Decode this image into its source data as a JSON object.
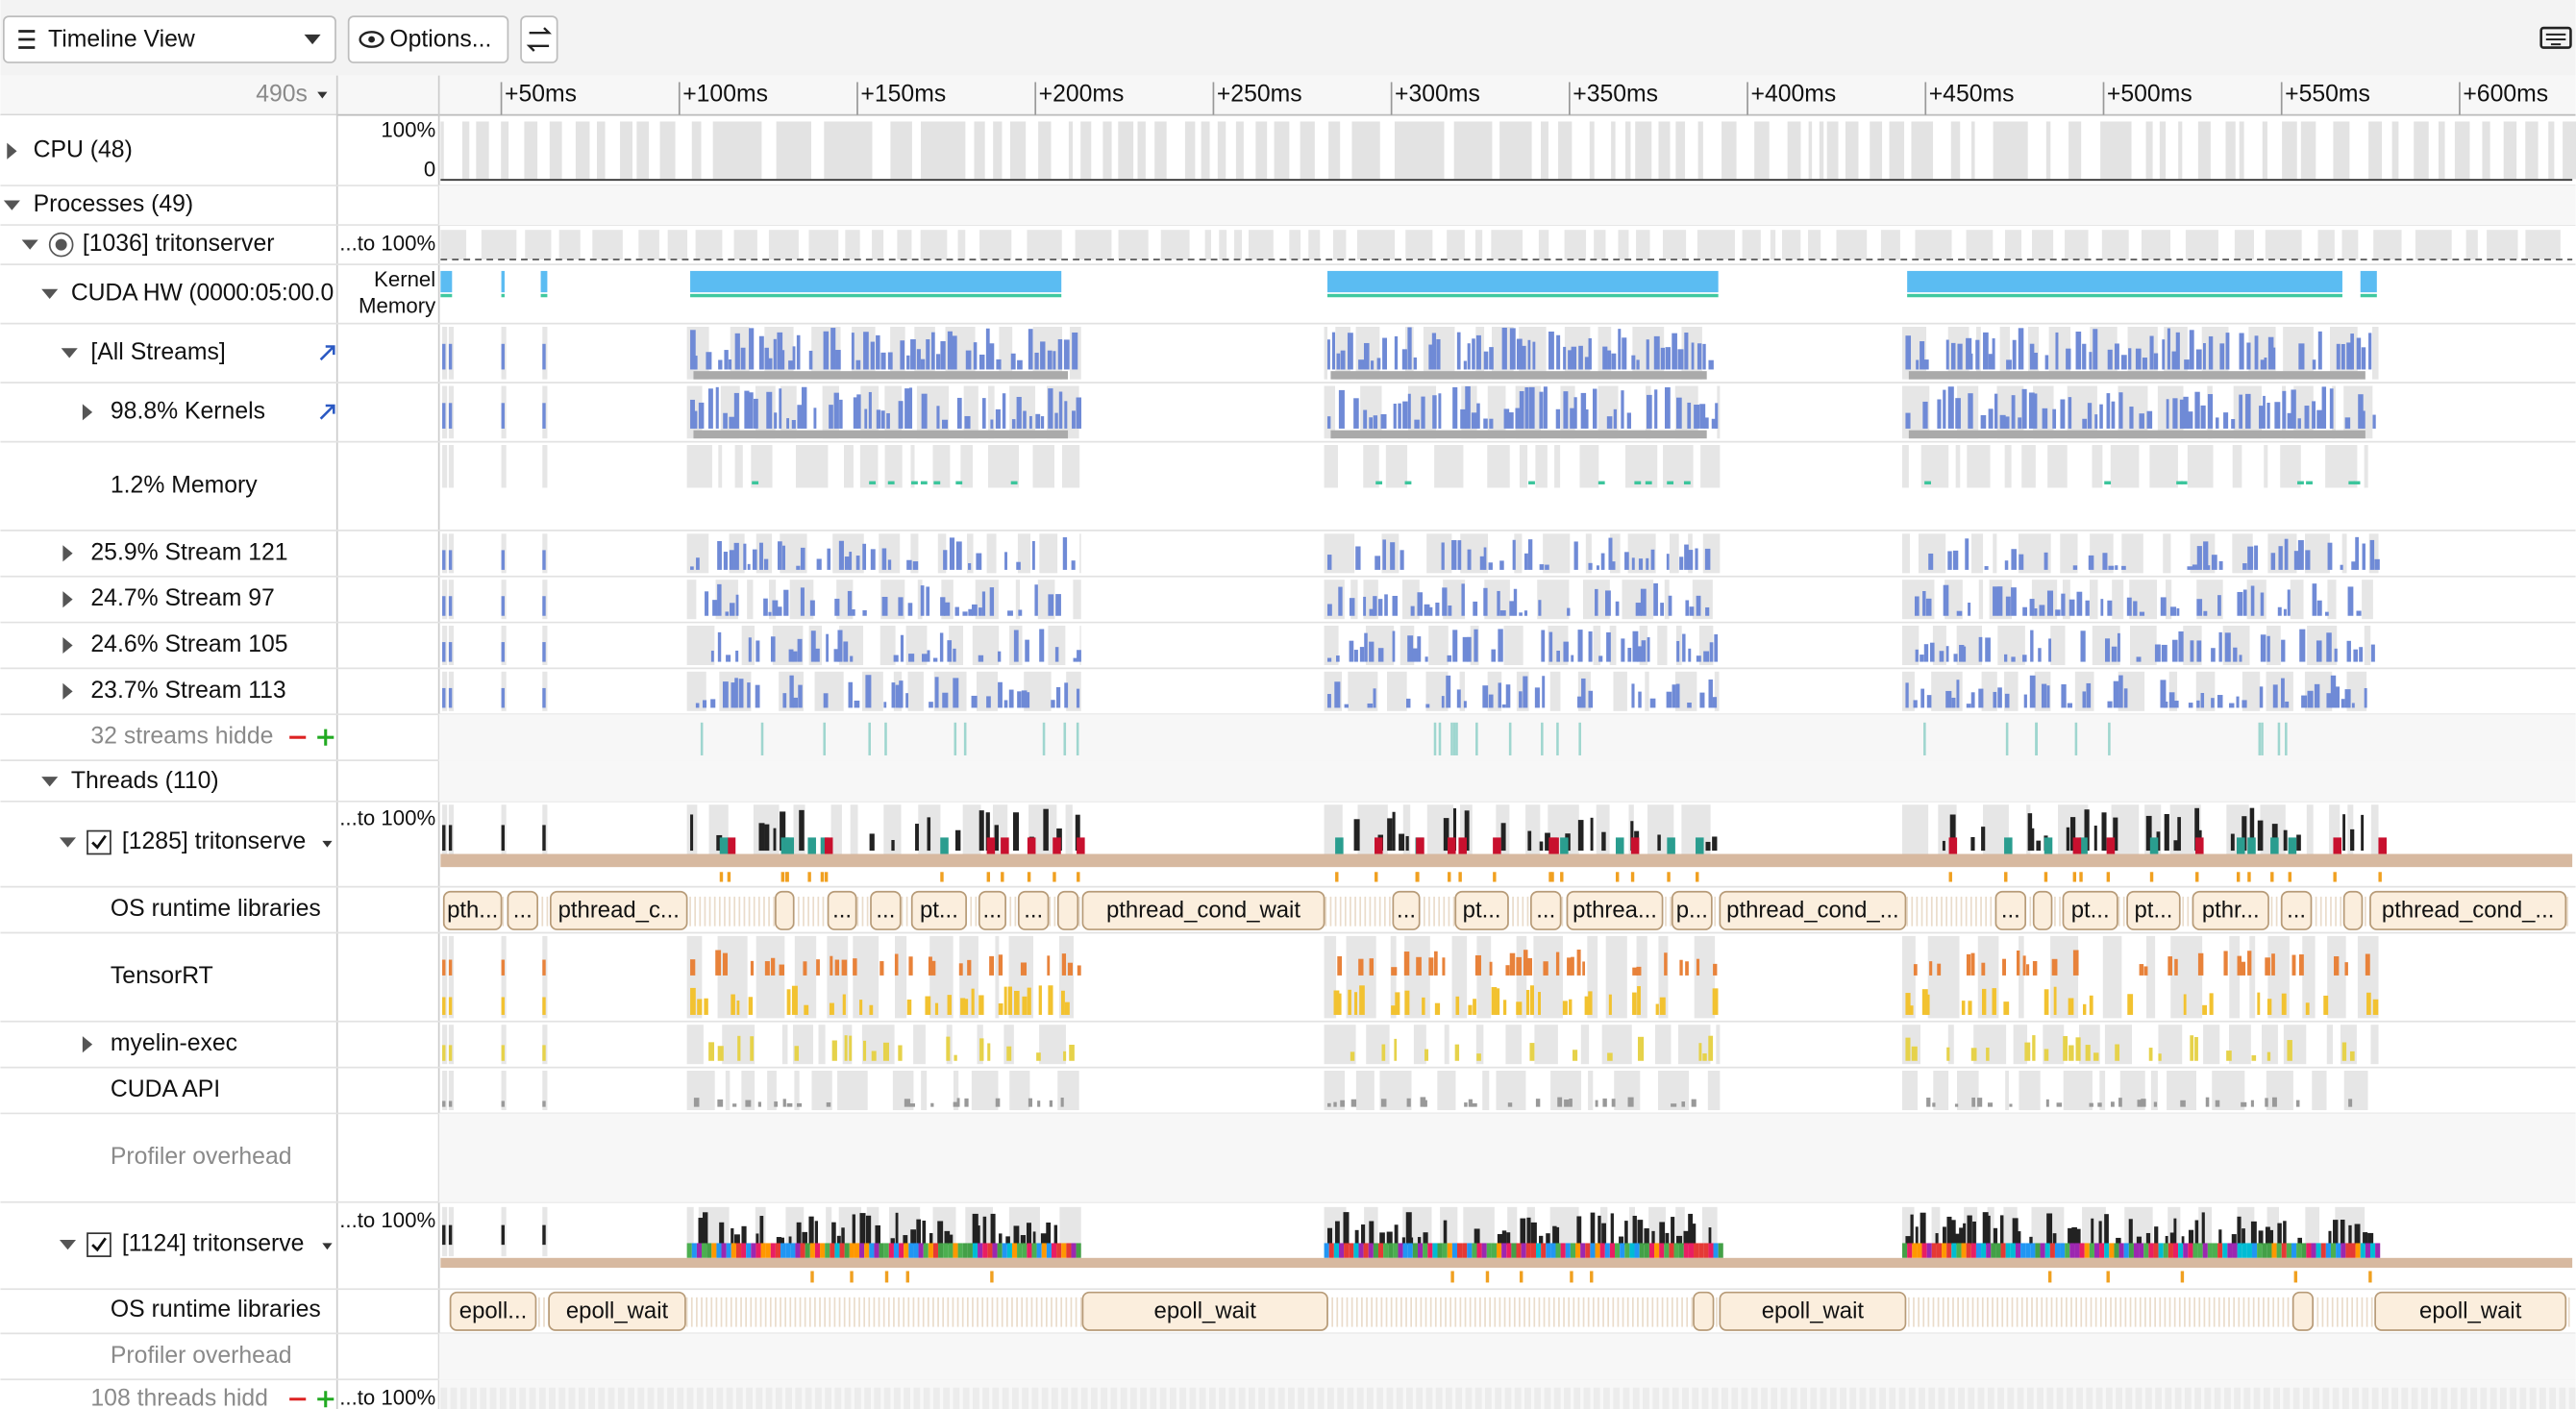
{
  "toolbar": {
    "view": "Timeline View",
    "options": "Options..."
  },
  "ruler": {
    "start": "490s",
    "ticks": [
      "+50ms",
      "+100ms",
      "+150ms",
      "+200ms",
      "+250ms",
      "+300ms",
      "+350ms",
      "+400ms",
      "+450ms",
      "+500ms",
      "+550ms",
      "+600ms"
    ]
  },
  "rows": [
    "CPU (48)",
    "Processes (49)",
    "[1036] tritonserver",
    "CUDA HW (0000:05:00.0",
    "[All Streams]",
    "98.8% Kernels",
    "1.2% Memory",
    "25.9% Stream 121",
    "24.7% Stream 97",
    "24.6% Stream 105",
    "23.7% Stream 113",
    "32 streams hidde",
    "Threads (110)",
    "[1285] tritonserve",
    "OS runtime libraries",
    "TensorRT",
    "myelin-exec",
    "CUDA API",
    "Profiler overhead",
    "[1124] tritonserve",
    "OS runtime libraries",
    "Profiler overhead",
    "108 threads hidd"
  ],
  "scale_labels": [
    "100%",
    "0",
    "...to 100%",
    "Kernel",
    "Memory",
    "...to 100%",
    "...to 100%",
    "...to 100%"
  ],
  "pills_1285": [
    "pth...",
    "...",
    "pthread_c...",
    "...",
    "...",
    "pt...",
    "...",
    "...",
    "pthread_cond_wait",
    "...",
    "pt...",
    "...",
    "pthrea...",
    "p...",
    "pthread_cond_...",
    "...",
    "pt...",
    "pt...",
    "pthr...",
    "...",
    "pthread_cond_..."
  ],
  "pills_1124": [
    "epoll...",
    "epoll_wait",
    "epoll_wait",
    "epoll_wait",
    "epoll_wait"
  ]
}
